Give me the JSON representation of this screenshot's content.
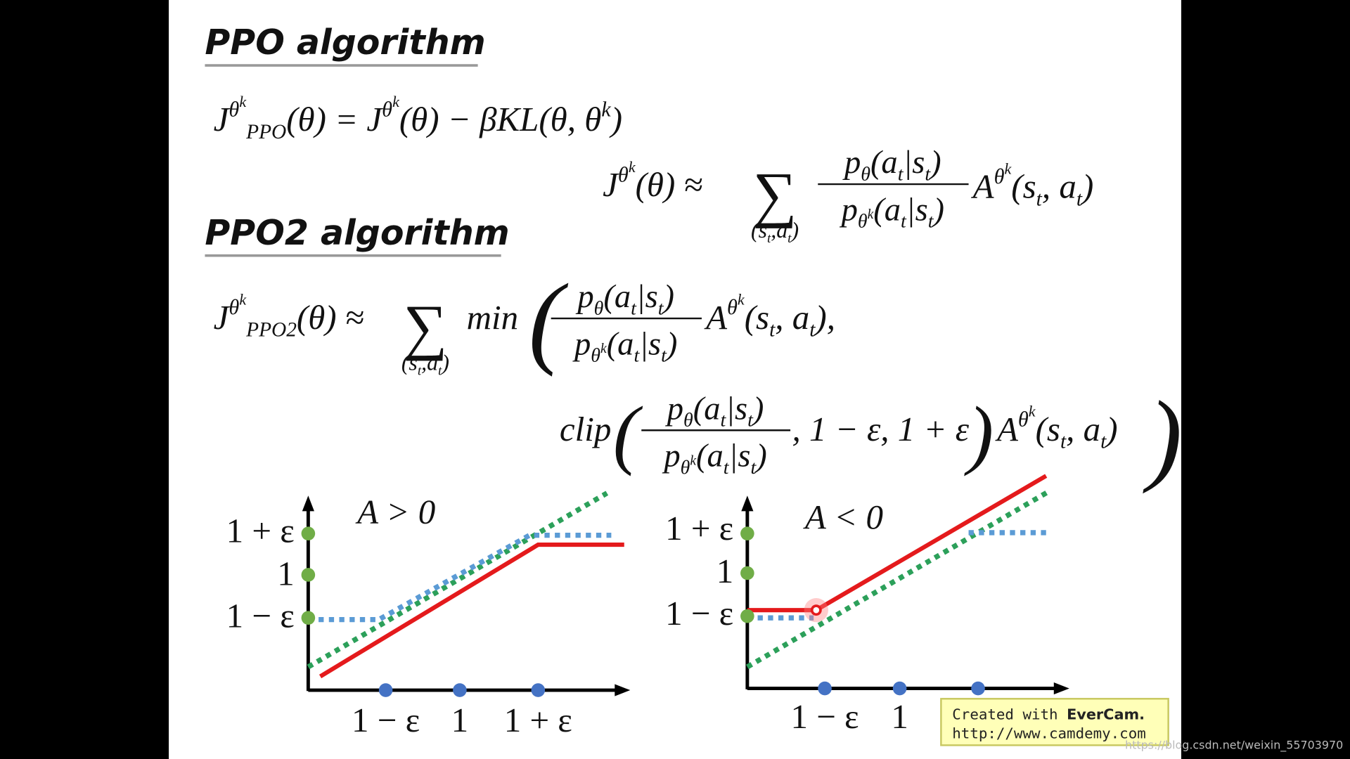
{
  "title_ppo": "PPO algorithm",
  "formula_ppo": [
    "J",
    "θ",
    "k",
    "PPO",
    "(θ) = J",
    "θ",
    "k",
    "(θ) − βKL(θ, θ",
    "k",
    ")"
  ],
  "formula_j": [
    "J",
    "θ",
    "k",
    "(θ) ≈",
    "∑",
    "(s",
    "t",
    ",a",
    "t",
    ")",
    "p",
    "θ",
    "(a",
    "t",
    "|s",
    "t",
    ")",
    "p",
    "θ",
    "k",
    "(a",
    "t",
    "|s",
    "t",
    ")",
    "A",
    "θ",
    "k",
    "(s",
    "t",
    ", a",
    "t",
    ")"
  ],
  "title_ppo2": "PPO2 algorithm",
  "formula_ppo2": [
    "J",
    "θ",
    "k",
    "PPO2",
    "(θ) ≈",
    "∑",
    "(s",
    "t",
    ",a",
    "t",
    ")",
    "min",
    "(",
    "p",
    "θ",
    "(a",
    "t",
    "|s",
    "t",
    ")",
    "p",
    "θ",
    "k",
    "(a",
    "t",
    "|s",
    "t",
    ")",
    "A",
    "θ",
    "k",
    "(s",
    "t",
    ", a",
    "t",
    "),"
  ],
  "formula_clip": [
    "clip",
    "(",
    "p",
    "θ",
    "(a",
    "t",
    "|s",
    "t",
    ")",
    "p",
    "θ",
    "k",
    "(a",
    "t",
    "|s",
    "t",
    ")",
    ", 1 − ε, 1 + ε",
    ")",
    "A",
    "θ",
    "k",
    "(s",
    "t",
    ", a",
    "t",
    ")",
    ")"
  ],
  "plot_left": {
    "label": "A > 0",
    "y_labels": [
      "1 + ε",
      "1",
      "1 − ε"
    ],
    "x_labels": [
      "1 − ε",
      "1",
      "1 + ε"
    ]
  },
  "plot_right": {
    "label": "A < 0",
    "y_labels": [
      "1 + ε",
      "1",
      "1 − ε"
    ],
    "x_labels": [
      "1 − ε",
      "1"
    ]
  },
  "watermark": {
    "created": "Created with",
    "brand": "EverCam.",
    "url": "http://www.camdemy.com"
  },
  "source_url": "https://blog.csdn.net/weixin_55703970"
}
